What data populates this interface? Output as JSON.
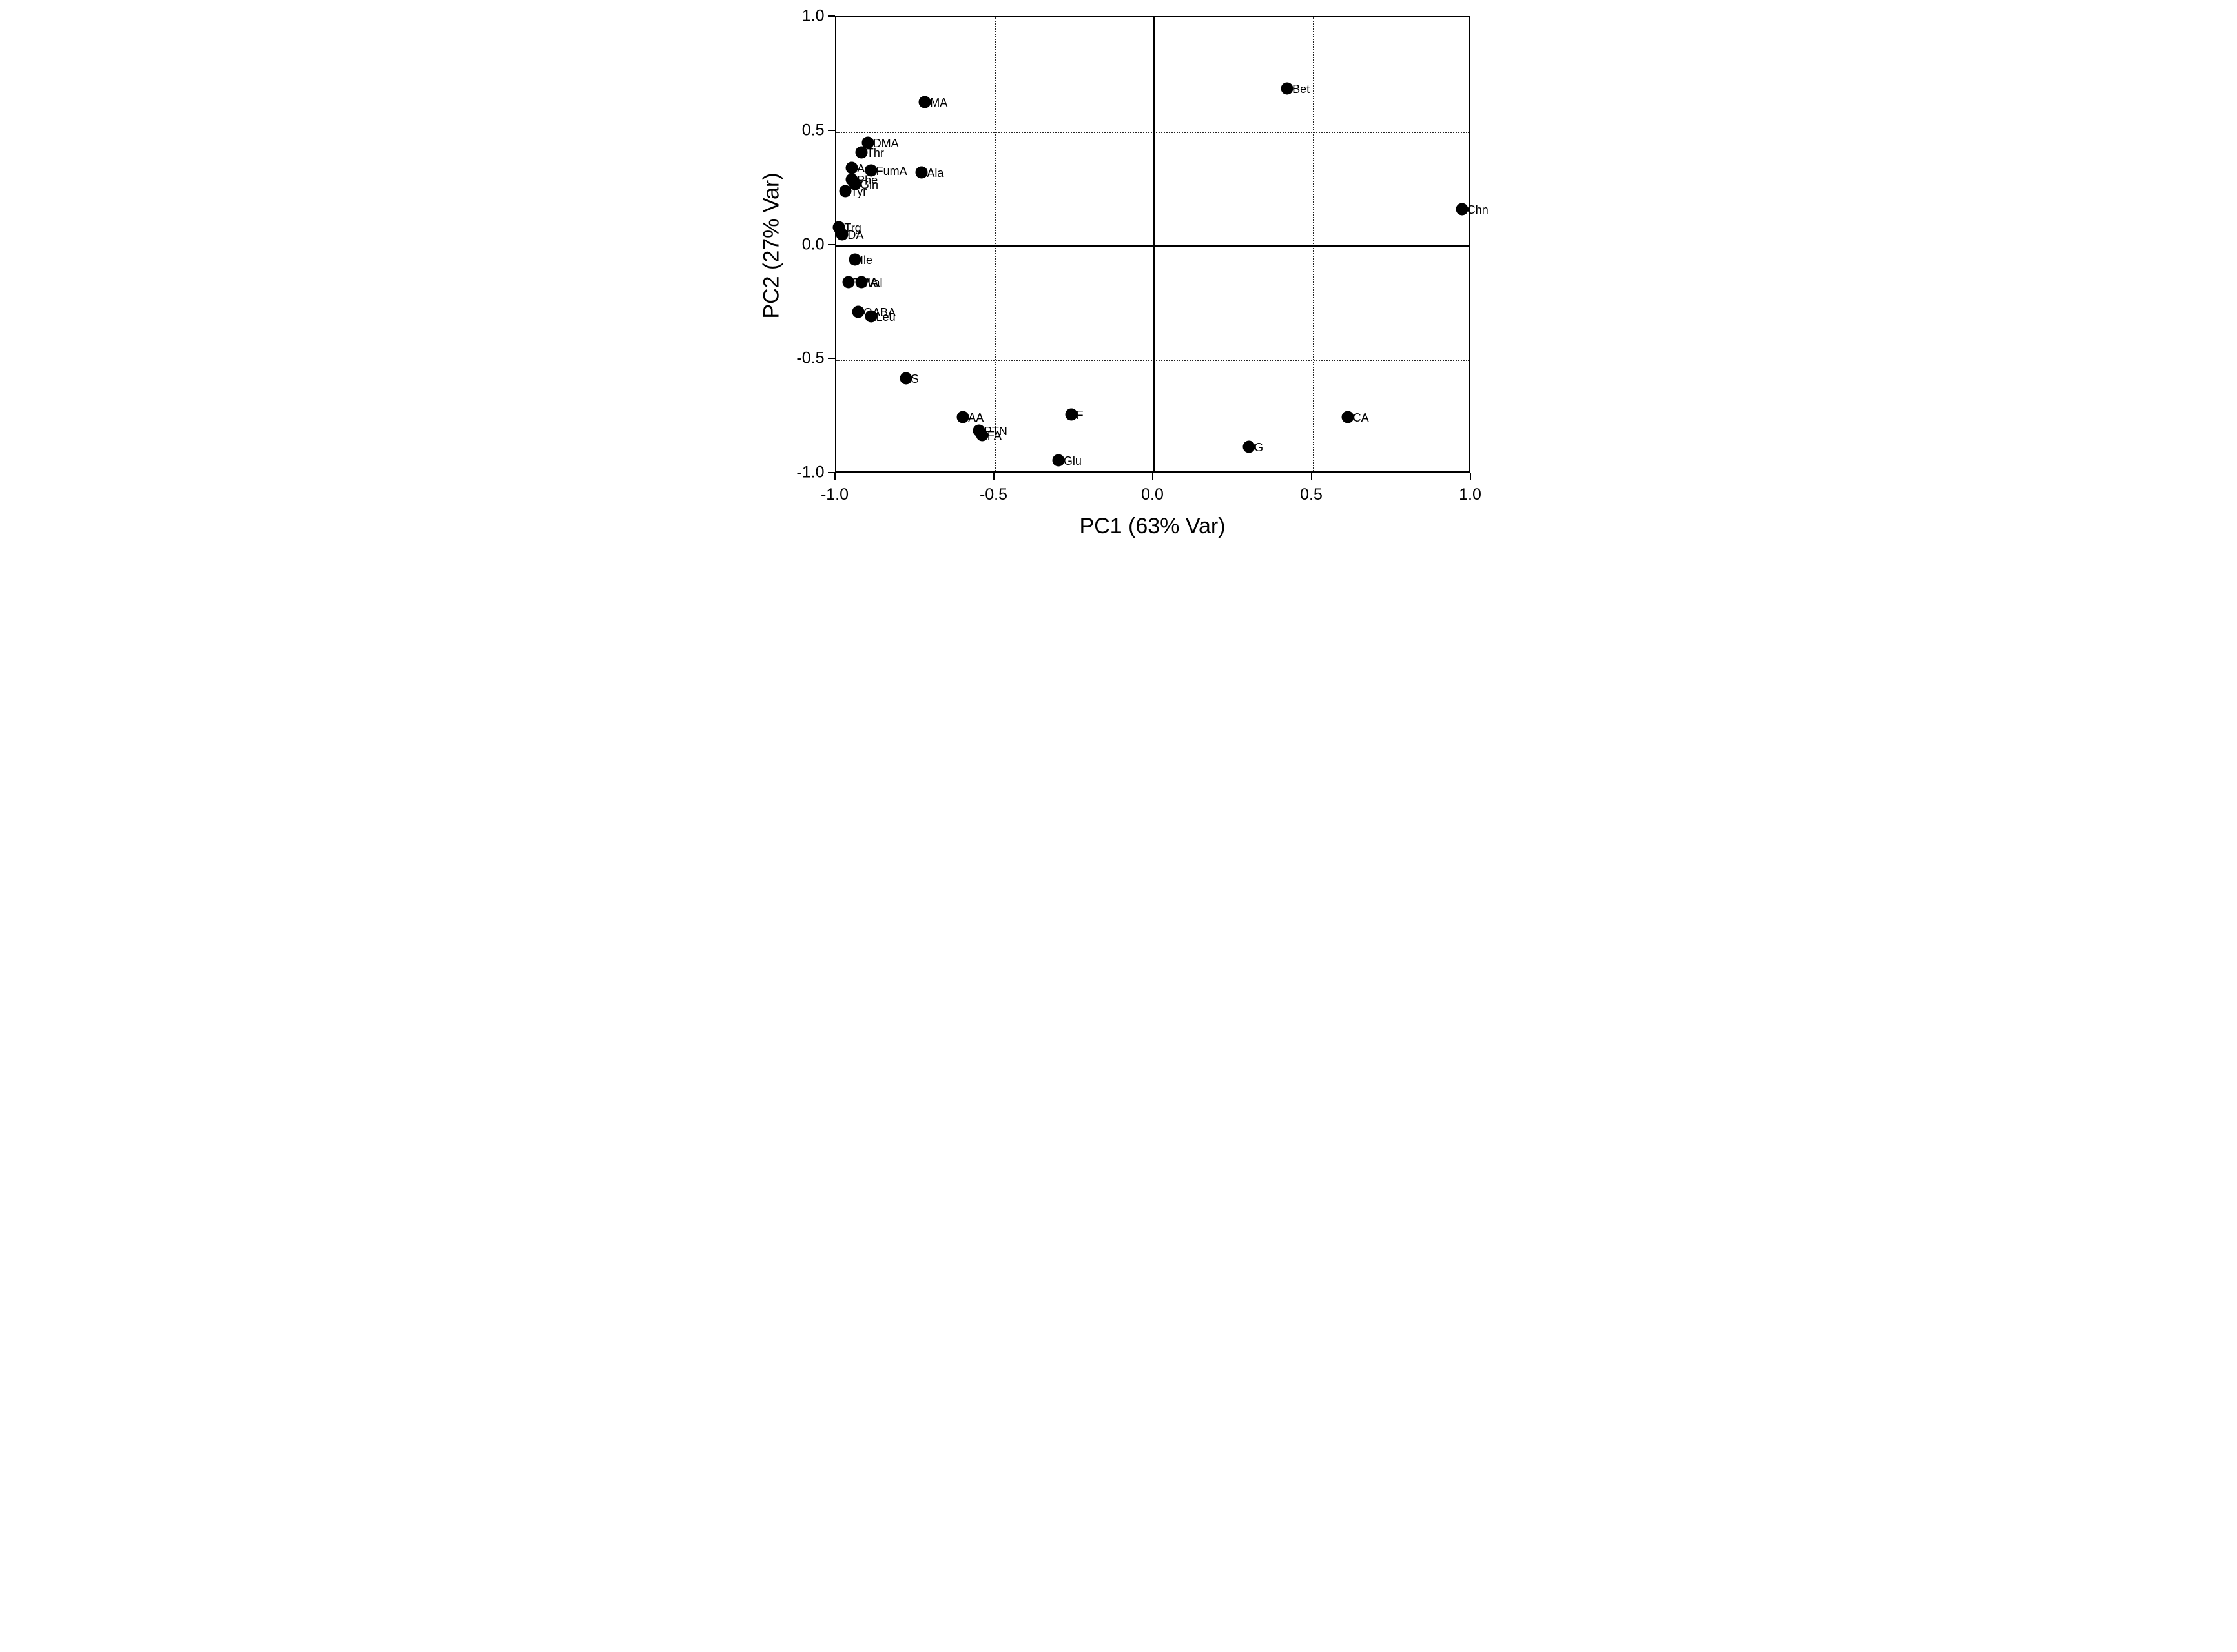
{
  "figure": {
    "background_color": "#ffffff",
    "frame_color": "#000000",
    "marker_color": "#000000",
    "text_color": "#000000"
  },
  "chart_data": {
    "type": "scatter",
    "title": "",
    "xlabel": "PC1 (63% Var)",
    "ylabel": "PC2 (27% Var)",
    "xlim": [
      -1.0,
      1.0
    ],
    "ylim": [
      -1.0,
      1.0
    ],
    "xticks": {
      "values": [
        -1.0,
        -0.5,
        0.0,
        0.5,
        1.0
      ],
      "labels": [
        "-1.0",
        "-0.5",
        "0.0",
        "0.5",
        "1.0"
      ]
    },
    "yticks": {
      "values": [
        -1.0,
        -0.5,
        0.0,
        0.5,
        1.0
      ],
      "labels": [
        "-1.0",
        "-0.5",
        "0.0",
        "0.5",
        "1.0"
      ]
    },
    "grid": {
      "dotted_gridlines_at": [
        -0.5,
        0.5
      ],
      "solid_zero_lines_at": [
        0.0
      ],
      "frame": true
    },
    "legend": "none",
    "marker": {
      "shape": "filled-circle",
      "color": "#000000"
    },
    "points": [
      {
        "label": "MA",
        "x": -0.72,
        "y": 0.63
      },
      {
        "label": "Bet",
        "x": 0.42,
        "y": 0.69
      },
      {
        "label": "DMA",
        "x": -0.9,
        "y": 0.45
      },
      {
        "label": "Thr",
        "x": -0.92,
        "y": 0.41
      },
      {
        "label": "Asp",
        "x": -0.95,
        "y": 0.34
      },
      {
        "label": "FumA",
        "x": -0.89,
        "y": 0.33
      },
      {
        "label": "Ala",
        "x": -0.73,
        "y": 0.32
      },
      {
        "label": "Phe",
        "x": -0.95,
        "y": 0.29
      },
      {
        "label": "Gln",
        "x": -0.94,
        "y": 0.27
      },
      {
        "label": "Tyr",
        "x": -0.97,
        "y": 0.24
      },
      {
        "label": "Chn",
        "x": 0.97,
        "y": 0.16
      },
      {
        "label": "Trg",
        "x": -0.99,
        "y": 0.08
      },
      {
        "label": "DA",
        "x": -0.98,
        "y": 0.05
      },
      {
        "label": "Ile",
        "x": -0.94,
        "y": -0.06
      },
      {
        "label": "TMA",
        "x": -0.96,
        "y": -0.16
      },
      {
        "label": "Val",
        "x": -0.92,
        "y": -0.16
      },
      {
        "label": "GABA",
        "x": -0.93,
        "y": -0.29
      },
      {
        "label": "Leu",
        "x": -0.89,
        "y": -0.31
      },
      {
        "label": "S",
        "x": -0.78,
        "y": -0.58
      },
      {
        "label": "AA",
        "x": -0.6,
        "y": -0.75
      },
      {
        "label": "PTN",
        "x": -0.55,
        "y": -0.81
      },
      {
        "label": "FA",
        "x": -0.54,
        "y": -0.83
      },
      {
        "label": "F",
        "x": -0.26,
        "y": -0.74
      },
      {
        "label": "Glu",
        "x": -0.3,
        "y": -0.94
      },
      {
        "label": "G",
        "x": 0.3,
        "y": -0.88
      },
      {
        "label": "CA",
        "x": 0.61,
        "y": -0.75
      }
    ]
  }
}
